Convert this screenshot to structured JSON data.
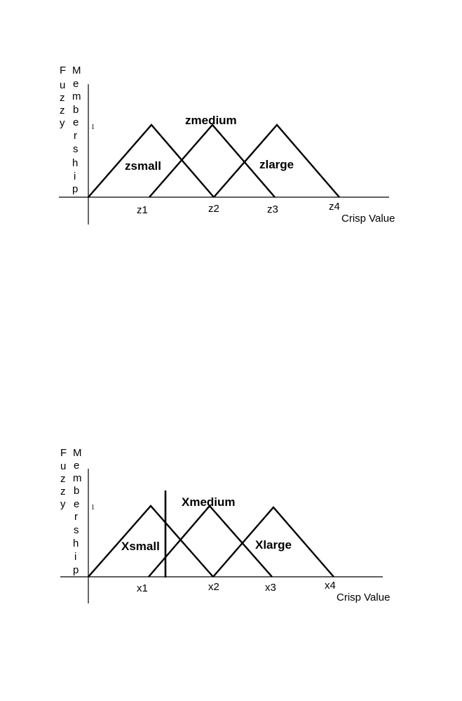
{
  "diagrams": [
    {
      "y_axis_label": [
        "F",
        "u",
        "z",
        "z",
        "y"
      ],
      "y_axis_label_2": [
        "M",
        "e",
        "m",
        "b",
        "e",
        "r",
        "s",
        "h",
        "i",
        "p"
      ],
      "one_label": "1",
      "x_axis_title": "Crisp  Value",
      "ticks": [
        "z1",
        "z2",
        "z3",
        "z4"
      ],
      "sets": [
        "zsmall",
        "zmedium",
        "zlarge"
      ]
    },
    {
      "y_axis_label": [
        "F",
        "u",
        "z",
        "z",
        "y"
      ],
      "y_axis_label_2": [
        "M",
        "e",
        "m",
        "b",
        "e",
        "r",
        "s",
        "h",
        "i",
        "p"
      ],
      "one_label": "1",
      "x_axis_title": "Crisp  Value",
      "ticks": [
        "x1",
        "x2",
        "x3",
        "x4"
      ],
      "sets": [
        "Xsmall",
        "Xmedium",
        "Xlarge"
      ]
    }
  ]
}
